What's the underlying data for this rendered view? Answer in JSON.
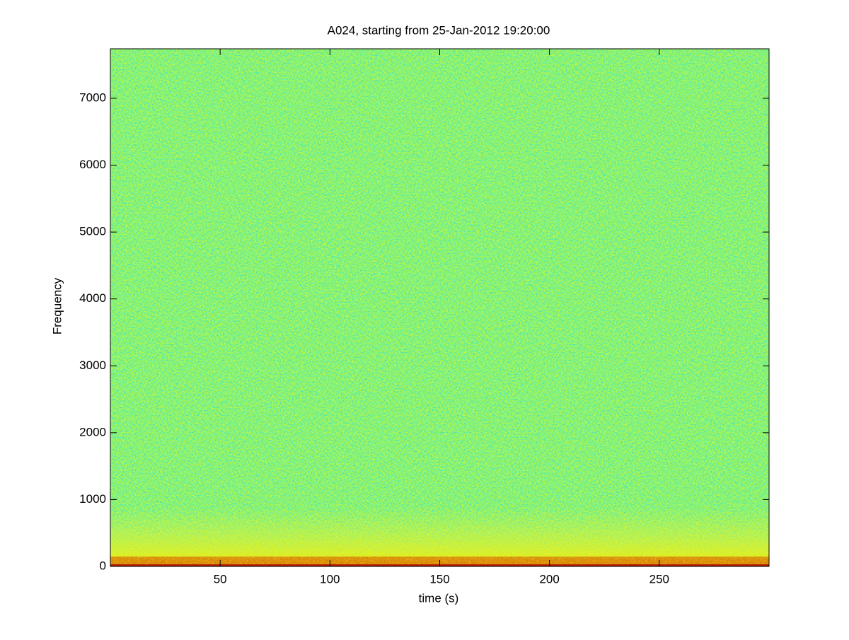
{
  "chart_data": {
    "type": "spectrogram",
    "title": "A024, starting from 25-Jan-2012 19:20:00",
    "x_label": "time (s)",
    "y_label": "Frequency",
    "xlim": [
      0,
      300
    ],
    "ylim": [
      0,
      7740
    ],
    "xticks": [
      50,
      100,
      150,
      200,
      250
    ],
    "yticks": [
      0,
      1000,
      2000,
      3000,
      4000,
      5000,
      6000,
      7000
    ],
    "grid": false
  }
}
